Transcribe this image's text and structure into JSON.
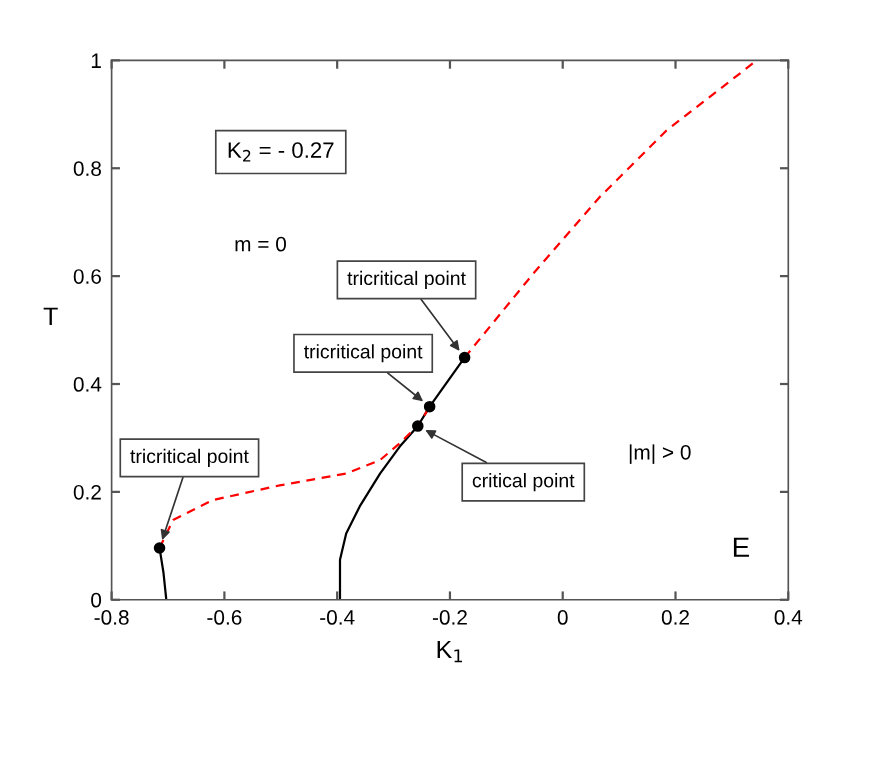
{
  "chart_data": {
    "type": "line",
    "xlabel": "K$_{1}$",
    "ylabel": "T",
    "xlim": [
      -0.8,
      0.4
    ],
    "xticks": [
      -0.8,
      -0.6,
      -0.4,
      -0.2,
      0,
      0.2,
      0.4
    ],
    "ylim": [
      0,
      1
    ],
    "yticks": [
      0,
      0.2,
      0.4,
      0.6,
      0.8,
      1
    ],
    "grid": false,
    "legend": false,
    "series": [
      {
        "color": "#000000",
        "line_style": "solid",
        "x": [
          -0.703,
          -0.708,
          -0.715
        ],
        "values": [
          0,
          0.05,
          0.096
        ]
      },
      {
        "color": "#000000",
        "line_style": "solid",
        "x": [
          -0.395,
          -0.395,
          -0.384,
          -0.36,
          -0.324,
          -0.289,
          -0.257
        ],
        "values": [
          0,
          0.074,
          0.123,
          0.173,
          0.234,
          0.284,
          0.322
        ]
      },
      {
        "color": "#000000",
        "line_style": "solid",
        "x": [
          -0.257,
          -0.236,
          -0.174
        ],
        "values": [
          0.322,
          0.358,
          0.449
        ]
      },
      {
        "color": "#ff0000",
        "line_style": "dashed",
        "x": [
          -0.715,
          -0.691,
          -0.62,
          -0.502,
          -0.384,
          -0.324,
          -0.289,
          -0.265,
          -0.257,
          -0.236
        ],
        "values": [
          0.096,
          0.148,
          0.185,
          0.212,
          0.234,
          0.259,
          0.29,
          0.315,
          0.322,
          0.358
        ]
      },
      {
        "color": "#ff0000",
        "line_style": "dashed",
        "x": [
          -0.174,
          -0.052,
          0.066,
          0.184,
          0.344
        ],
        "values": [
          0.449,
          0.605,
          0.747,
          0.87,
          1.0
        ]
      },
      {
        "type": "scatter",
        "color": "#000000",
        "marker": "circle",
        "x": [
          -0.715,
          -0.257,
          -0.236,
          -0.174
        ],
        "values": [
          0.096,
          0.322,
          0.358,
          0.449
        ]
      }
    ],
    "annotations": [
      "K$_{2}$ = - 0.27",
      "m = 0",
      "|m| > 0",
      "E",
      {
        "text": "tricritical point",
        "x": -0.715,
        "y": 0.096
      },
      {
        "text": "tricritical point",
        "x": -0.236,
        "y": 0.358
      },
      {
        "text": "tricritical point",
        "x": -0.174,
        "y": 0.449
      },
      {
        "text": "critical point",
        "x": -0.257,
        "y": 0.322
      }
    ]
  }
}
